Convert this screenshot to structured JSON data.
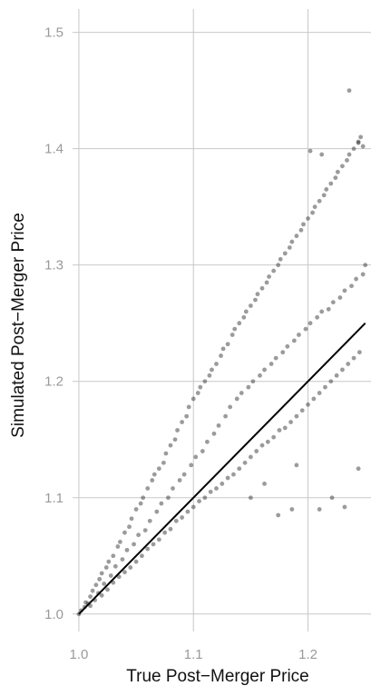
{
  "chart_data": {
    "type": "scatter",
    "title": "",
    "xlabel": "True Post−Merger Price",
    "ylabel": "Simulated Post−Merger Price",
    "xlim": [
      0.985,
      1.255
    ],
    "ylim": [
      0.985,
      1.52
    ],
    "x_ticks": [
      1.0,
      1.1,
      1.2
    ],
    "x_tick_labels": [
      "1.0",
      "1.1",
      "1.2"
    ],
    "y_ticks": [
      1.0,
      1.1,
      1.2,
      1.3,
      1.4,
      1.5
    ],
    "y_tick_labels": [
      "1.0",
      "1.1",
      "1.2",
      "1.3",
      "1.4",
      "1.5"
    ],
    "grid": true,
    "legend": "none",
    "point_color": "#222222",
    "point_opacity": 0.45,
    "reference_line": {
      "x": [
        1.0,
        1.25
      ],
      "y": [
        1.0,
        1.25
      ],
      "color": "#000000"
    },
    "series": [
      {
        "points": [
          [
            1.0,
            1.0
          ],
          [
            1.002,
            1.003
          ],
          [
            1.005,
            1.006
          ],
          [
            1.006,
            1.01
          ],
          [
            1.008,
            1.009
          ],
          [
            1.01,
            1.015
          ],
          [
            1.01,
            1.007
          ],
          [
            1.012,
            1.02
          ],
          [
            1.014,
            1.012
          ],
          [
            1.015,
            1.025
          ],
          [
            1.017,
            1.018
          ],
          [
            1.018,
            1.03
          ],
          [
            1.02,
            1.016
          ],
          [
            1.02,
            1.035
          ],
          [
            1.022,
            1.026
          ],
          [
            1.024,
            1.04
          ],
          [
            1.025,
            1.021
          ],
          [
            1.026,
            1.045
          ],
          [
            1.028,
            1.033
          ],
          [
            1.03,
            1.05
          ],
          [
            1.03,
            1.027
          ],
          [
            1.032,
            1.041
          ],
          [
            1.034,
            1.058
          ],
          [
            1.035,
            1.032
          ],
          [
            1.036,
            1.062
          ],
          [
            1.038,
            1.047
          ],
          [
            1.04,
            1.07
          ],
          [
            1.04,
            1.036
          ],
          [
            1.042,
            1.055
          ],
          [
            1.044,
            1.075
          ],
          [
            1.045,
            1.04
          ],
          [
            1.046,
            1.082
          ],
          [
            1.048,
            1.06
          ],
          [
            1.05,
            1.09
          ],
          [
            1.05,
            1.045
          ],
          [
            1.052,
            1.068
          ],
          [
            1.054,
            1.095
          ],
          [
            1.055,
            1.05
          ],
          [
            1.056,
            1.1
          ],
          [
            1.058,
            1.072
          ],
          [
            1.06,
            1.108
          ],
          [
            1.06,
            1.056
          ],
          [
            1.062,
            1.08
          ],
          [
            1.064,
            1.115
          ],
          [
            1.065,
            1.06
          ],
          [
            1.066,
            1.12
          ],
          [
            1.068,
            1.088
          ],
          [
            1.07,
            1.125
          ],
          [
            1.07,
            1.064
          ],
          [
            1.072,
            1.095
          ],
          [
            1.074,
            1.13
          ],
          [
            1.075,
            1.07
          ],
          [
            1.076,
            1.138
          ],
          [
            1.078,
            1.1
          ],
          [
            1.08,
            1.145
          ],
          [
            1.08,
            1.073
          ],
          [
            1.082,
            1.108
          ],
          [
            1.084,
            1.15
          ],
          [
            1.085,
            1.08
          ],
          [
            1.086,
            1.158
          ],
          [
            1.088,
            1.115
          ],
          [
            1.09,
            1.165
          ],
          [
            1.09,
            1.083
          ],
          [
            1.092,
            1.12
          ],
          [
            1.094,
            1.17
          ],
          [
            1.095,
            1.088
          ],
          [
            1.096,
            1.178
          ],
          [
            1.098,
            1.128
          ],
          [
            1.1,
            1.185
          ],
          [
            1.1,
            1.092
          ],
          [
            1.102,
            1.135
          ],
          [
            1.104,
            1.19
          ],
          [
            1.105,
            1.097
          ],
          [
            1.106,
            1.195
          ],
          [
            1.108,
            1.14
          ],
          [
            1.11,
            1.2
          ],
          [
            1.11,
            1.1
          ],
          [
            1.112,
            1.148
          ],
          [
            1.114,
            1.205
          ],
          [
            1.115,
            1.105
          ],
          [
            1.116,
            1.21
          ],
          [
            1.118,
            1.155
          ],
          [
            1.12,
            1.215
          ],
          [
            1.12,
            1.108
          ],
          [
            1.122,
            1.162
          ],
          [
            1.124,
            1.222
          ],
          [
            1.125,
            1.112
          ],
          [
            1.126,
            1.228
          ],
          [
            1.128,
            1.17
          ],
          [
            1.13,
            1.232
          ],
          [
            1.13,
            1.117
          ],
          [
            1.132,
            1.178
          ],
          [
            1.134,
            1.24
          ],
          [
            1.135,
            1.12
          ],
          [
            1.136,
            1.245
          ],
          [
            1.138,
            1.185
          ],
          [
            1.14,
            1.25
          ],
          [
            1.14,
            1.125
          ],
          [
            1.142,
            1.19
          ],
          [
            1.144,
            1.255
          ],
          [
            1.145,
            1.13
          ],
          [
            1.146,
            1.26
          ],
          [
            1.148,
            1.195
          ],
          [
            1.15,
            1.265
          ],
          [
            1.15,
            1.135
          ],
          [
            1.152,
            1.2
          ],
          [
            1.154,
            1.27
          ],
          [
            1.155,
            1.14
          ],
          [
            1.156,
            1.275
          ],
          [
            1.158,
            1.205
          ],
          [
            1.16,
            1.28
          ],
          [
            1.16,
            1.145
          ],
          [
            1.162,
            1.21
          ],
          [
            1.164,
            1.285
          ],
          [
            1.165,
            1.148
          ],
          [
            1.166,
            1.29
          ],
          [
            1.168,
            1.215
          ],
          [
            1.17,
            1.295
          ],
          [
            1.17,
            1.152
          ],
          [
            1.172,
            1.22
          ],
          [
            1.174,
            1.3
          ],
          [
            1.175,
            1.158
          ],
          [
            1.176,
            1.305
          ],
          [
            1.178,
            1.225
          ],
          [
            1.18,
            1.31
          ],
          [
            1.18,
            1.16
          ],
          [
            1.182,
            1.23
          ],
          [
            1.184,
            1.315
          ],
          [
            1.185,
            1.165
          ],
          [
            1.186,
            1.32
          ],
          [
            1.188,
            1.235
          ],
          [
            1.19,
            1.325
          ],
          [
            1.19,
            1.17
          ],
          [
            1.192,
            1.24
          ],
          [
            1.194,
            1.33
          ],
          [
            1.195,
            1.175
          ],
          [
            1.196,
            1.335
          ],
          [
            1.198,
            1.245
          ],
          [
            1.2,
            1.34
          ],
          [
            1.2,
            1.18
          ],
          [
            1.202,
            1.25
          ],
          [
            1.204,
            1.345
          ],
          [
            1.205,
            1.185
          ],
          [
            1.206,
            1.35
          ],
          [
            1.208,
            1.255
          ],
          [
            1.21,
            1.355
          ],
          [
            1.21,
            1.19
          ],
          [
            1.212,
            1.26
          ],
          [
            1.214,
            1.36
          ],
          [
            1.215,
            1.195
          ],
          [
            1.216,
            1.365
          ],
          [
            1.218,
            1.262
          ],
          [
            1.22,
            1.37
          ],
          [
            1.22,
            1.2
          ],
          [
            1.222,
            1.268
          ],
          [
            1.224,
            1.375
          ],
          [
            1.225,
            1.205
          ],
          [
            1.226,
            1.38
          ],
          [
            1.228,
            1.272
          ],
          [
            1.23,
            1.385
          ],
          [
            1.23,
            1.21
          ],
          [
            1.232,
            1.278
          ],
          [
            1.234,
            1.39
          ],
          [
            1.235,
            1.215
          ],
          [
            1.236,
            1.395
          ],
          [
            1.238,
            1.282
          ],
          [
            1.24,
            1.4
          ],
          [
            1.24,
            1.22
          ],
          [
            1.242,
            1.288
          ],
          [
            1.244,
            1.405
          ],
          [
            1.245,
            1.225
          ],
          [
            1.246,
            1.41
          ],
          [
            1.248,
            1.292
          ],
          [
            1.25,
            1.3
          ],
          [
            1.202,
            1.398
          ],
          [
            1.212,
            1.395
          ],
          [
            1.236,
            1.45
          ],
          [
            1.244,
            1.406
          ],
          [
            1.248,
            1.402
          ],
          [
            1.221,
            1.1
          ],
          [
            1.232,
            1.092
          ],
          [
            1.186,
            1.09
          ],
          [
            1.174,
            1.085
          ],
          [
            1.21,
            1.09
          ],
          [
            1.15,
            1.1
          ],
          [
            1.162,
            1.112
          ],
          [
            1.19,
            1.128
          ],
          [
            1.244,
            1.125
          ]
        ]
      }
    ]
  }
}
